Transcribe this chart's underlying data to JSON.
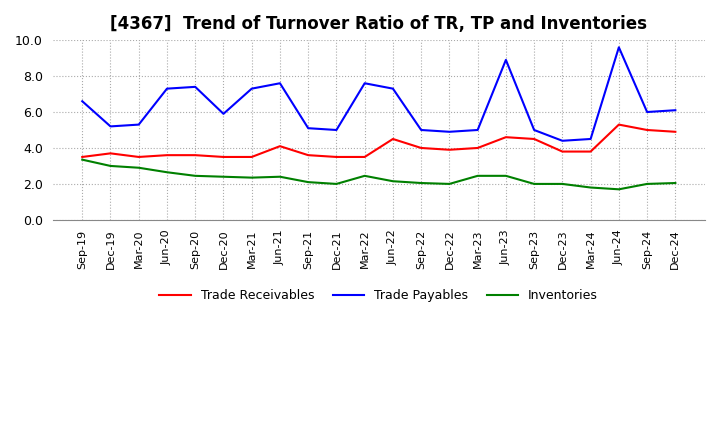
{
  "title": "[4367]  Trend of Turnover Ratio of TR, TP and Inventories",
  "ylim": [
    0.0,
    10.0
  ],
  "yticks": [
    0.0,
    2.0,
    4.0,
    6.0,
    8.0,
    10.0
  ],
  "ytick_labels": [
    "0.0",
    "2.0",
    "4.0",
    "6.0",
    "8.0",
    "10.0"
  ],
  "x_labels": [
    "Sep-19",
    "Dec-19",
    "Mar-20",
    "Jun-20",
    "Sep-20",
    "Dec-20",
    "Mar-21",
    "Jun-21",
    "Sep-21",
    "Dec-21",
    "Mar-22",
    "Jun-22",
    "Sep-22",
    "Dec-22",
    "Mar-23",
    "Jun-23",
    "Sep-23",
    "Dec-23",
    "Mar-24",
    "Jun-24",
    "Sep-24",
    "Dec-24"
  ],
  "trade_receivables": [
    3.5,
    3.7,
    3.5,
    3.6,
    3.6,
    3.5,
    3.5,
    4.1,
    3.6,
    3.5,
    3.5,
    4.5,
    4.0,
    3.9,
    4.0,
    4.6,
    4.5,
    3.8,
    3.8,
    5.3,
    5.0,
    4.9
  ],
  "trade_payables": [
    6.6,
    5.2,
    5.3,
    7.3,
    7.4,
    5.9,
    7.3,
    7.6,
    5.1,
    5.0,
    7.6,
    7.3,
    5.0,
    4.9,
    5.0,
    8.9,
    5.0,
    4.4,
    4.5,
    9.6,
    6.0,
    6.1
  ],
  "inventories": [
    3.35,
    3.0,
    2.9,
    2.65,
    2.45,
    2.4,
    2.35,
    2.4,
    2.1,
    2.0,
    2.45,
    2.15,
    2.05,
    2.0,
    2.45,
    2.45,
    2.0,
    2.0,
    1.8,
    1.7,
    2.0,
    2.05
  ],
  "tr_color": "#ff0000",
  "tp_color": "#0000ff",
  "inv_color": "#008000",
  "bg_color": "#ffffff",
  "plot_bg_color": "#ffffff",
  "grid_color": "#aaaaaa",
  "title_fontsize": 12,
  "tick_fontsize": 9,
  "legend_labels": [
    "Trade Receivables",
    "Trade Payables",
    "Inventories"
  ]
}
